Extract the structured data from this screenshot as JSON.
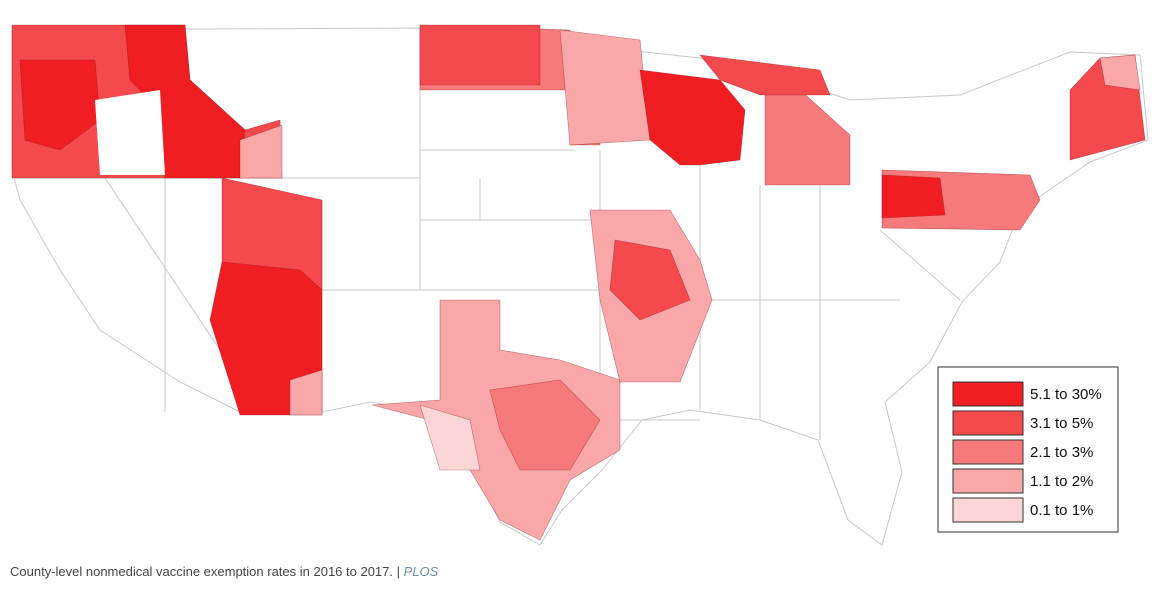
{
  "legend": {
    "items": [
      {
        "label": "5.1 to 30%",
        "color": "#f01e23"
      },
      {
        "label": "3.1 to 5%",
        "color": "#f4494d"
      },
      {
        "label": "2.1 to 3%",
        "color": "#f6797b"
      },
      {
        "label": "1.1 to 2%",
        "color": "#f9a7a8"
      },
      {
        "label": "0.1 to 1%",
        "color": "#fcd6d6"
      }
    ]
  },
  "caption": {
    "text": "County-level nonmedical vaccine exemption rates in 2016 to 2017.",
    "separator": "|",
    "source": "PLOS"
  }
}
